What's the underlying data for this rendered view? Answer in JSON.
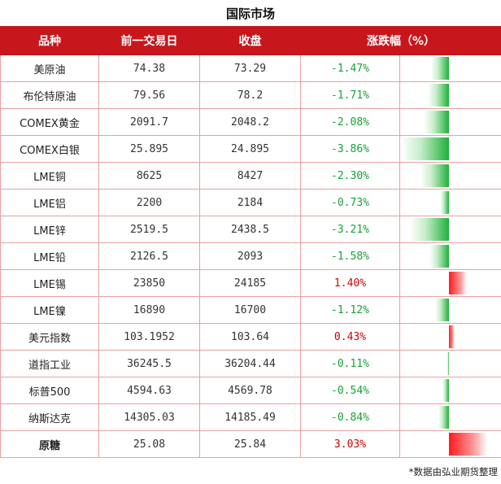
{
  "title": "国际市场",
  "headers": [
    "品种",
    "前一交易日",
    "收盘",
    "涨跌幅（%）"
  ],
  "rows": [
    {
      "name": "美原油",
      "prev": "74.38",
      "close": "73.29",
      "pct": "-1.47%",
      "value": -1.47
    },
    {
      "name": "布伦特原油",
      "prev": "79.56",
      "close": "78.2",
      "pct": "-1.71%",
      "value": -1.71
    },
    {
      "name": "COMEX黄金",
      "prev": "2091.7",
      "close": "2048.2",
      "pct": "-2.08%",
      "value": -2.08
    },
    {
      "name": "COMEX白银",
      "prev": "25.895",
      "close": "24.895",
      "pct": "-3.86%",
      "value": -3.86
    },
    {
      "name": "LME铜",
      "prev": "8625",
      "close": "8427",
      "pct": "-2.30%",
      "value": -2.3
    },
    {
      "name": "LME铝",
      "prev": "2200",
      "close": "2184",
      "pct": "-0.73%",
      "value": -0.73
    },
    {
      "name": "LME锌",
      "prev": "2519.5",
      "close": "2438.5",
      "pct": "-3.21%",
      "value": -3.21
    },
    {
      "name": "LME铅",
      "prev": "2126.5",
      "close": "2093",
      "pct": "-1.58%",
      "value": -1.58
    },
    {
      "name": "LME锡",
      "prev": "23850",
      "close": "24185",
      "pct": "1.40%",
      "value": 1.4
    },
    {
      "name": "LME镍",
      "prev": "16890",
      "close": "16700",
      "pct": "-1.12%",
      "value": -1.12
    },
    {
      "name": "美元指数",
      "prev": "103.1952",
      "close": "103.64",
      "pct": "0.43%",
      "value": 0.43
    },
    {
      "name": "道指工业",
      "prev": "36245.5",
      "close": "36204.44",
      "pct": "-0.11%",
      "value": -0.11
    },
    {
      "name": "标普500",
      "prev": "4594.63",
      "close": "4569.78",
      "pct": "-0.54%",
      "value": -0.54
    },
    {
      "name": "纳斯达克",
      "prev": "14305.03",
      "close": "14185.49",
      "pct": "-0.84%",
      "value": -0.84
    },
    {
      "name": "原糖",
      "prev": "25.08",
      "close": "25.84",
      "pct": "3.03%",
      "value": 3.03,
      "bold": true
    }
  ],
  "colors": {
    "header_bg": "#c8161d",
    "negative": "#1aa035",
    "positive": "#d40000",
    "border": "#e9a1a1"
  },
  "footnote": "*数据由弘业期货整理"
}
